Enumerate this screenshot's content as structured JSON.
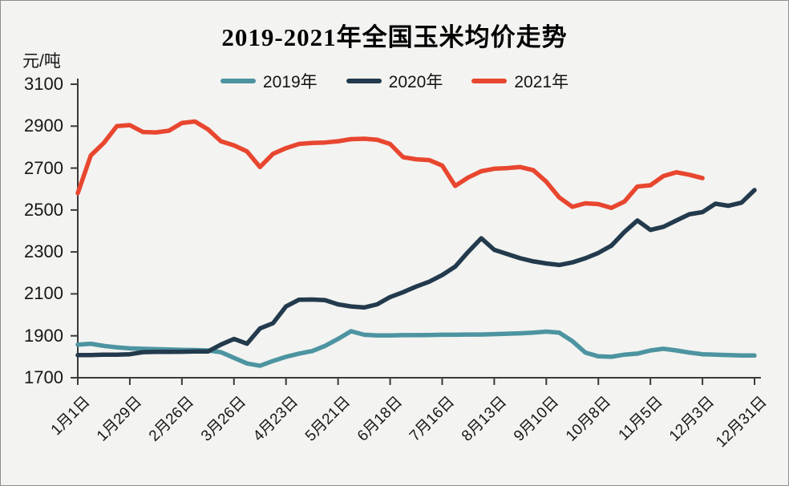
{
  "window": {
    "background": "#f3f3f1",
    "border_color": "#8e8e8e"
  },
  "chart": {
    "title": "2019-2021年全国玉米均价走势",
    "y_axis_unit": "元/吨",
    "axis_color": "#3a3a3a",
    "text_color": "#161616",
    "legend": [
      {
        "label": "2019年",
        "color": "#4D94A1"
      },
      {
        "label": "2020年",
        "color": "#233A4D"
      },
      {
        "label": "2021年",
        "color": "#E8462F"
      }
    ]
  },
  "chart_data": {
    "type": "line",
    "title": "2019-2021年全国玉米均价走势",
    "xlabel": "",
    "ylabel": "元/吨",
    "ylim": [
      1700,
      3100
    ],
    "y_ticks": [
      3100,
      2900,
      2700,
      2500,
      2300,
      2100,
      1900,
      1700
    ],
    "x_tick_labels": [
      "1月1日",
      "1月29日",
      "2月26日",
      "3月26日",
      "4月23日",
      "5月21日",
      "6月18日",
      "7月16日",
      "8月13日",
      "9月10日",
      "10月8日",
      "11月5日",
      "12月3日",
      "12月31日"
    ],
    "x_tick_week_index": [
      0,
      4,
      8,
      12,
      16,
      20,
      24,
      28,
      32,
      36,
      40,
      44,
      48,
      52
    ],
    "x_total_weeks": 52,
    "grid": false,
    "legend_position": "top-center",
    "note_units": "yuan per ton, weekly points from Jan 1 to Dec 31",
    "series": [
      {
        "name": "2019年",
        "color": "#4D94A1",
        "values": [
          1858,
          1862,
          1852,
          1845,
          1840,
          1838,
          1836,
          1835,
          1833,
          1832,
          1830,
          1822,
          1795,
          1768,
          1757,
          1780,
          1800,
          1815,
          1827,
          1852,
          1885,
          1922,
          1905,
          1902,
          1902,
          1903,
          1903,
          1904,
          1905,
          1905,
          1906,
          1906,
          1908,
          1910,
          1912,
          1915,
          1920,
          1915,
          1875,
          1820,
          1802,
          1800,
          1810,
          1815,
          1830,
          1838,
          1830,
          1820,
          1812,
          1810,
          1808,
          1806,
          1806
        ]
      },
      {
        "name": "2020年",
        "color": "#233A4D",
        "values": [
          1808,
          1808,
          1810,
          1810,
          1812,
          1822,
          1823,
          1823,
          1824,
          1825,
          1825,
          1858,
          1885,
          1862,
          1935,
          1960,
          2040,
          2072,
          2073,
          2070,
          2050,
          2040,
          2035,
          2050,
          2085,
          2108,
          2135,
          2158,
          2190,
          2230,
          2300,
          2365,
          2310,
          2290,
          2270,
          2255,
          2245,
          2238,
          2250,
          2270,
          2295,
          2330,
          2395,
          2450,
          2405,
          2420,
          2450,
          2480,
          2490,
          2530,
          2520,
          2535,
          2595
        ]
      },
      {
        "name": "2021年",
        "color": "#E8462F",
        "values": [
          2580,
          2760,
          2820,
          2900,
          2905,
          2872,
          2870,
          2878,
          2915,
          2922,
          2885,
          2828,
          2808,
          2780,
          2705,
          2768,
          2795,
          2815,
          2820,
          2822,
          2828,
          2838,
          2840,
          2835,
          2815,
          2752,
          2742,
          2738,
          2712,
          2615,
          2655,
          2685,
          2697,
          2700,
          2705,
          2690,
          2635,
          2560,
          2515,
          2532,
          2528,
          2510,
          2540,
          2612,
          2618,
          2662,
          2680,
          2668,
          2652
        ]
      }
    ]
  }
}
